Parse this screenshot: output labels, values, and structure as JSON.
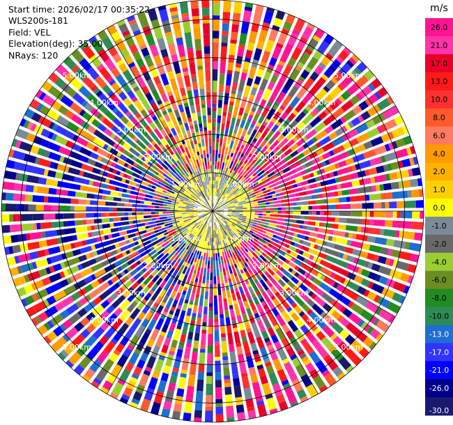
{
  "header": {
    "start_time": "Start time: 2026/02/17 00:35:22",
    "instrument": "WLS200s-181",
    "field": "Field: VEL",
    "elevation": "Elevation(deg): 35.00",
    "nrays": "NRays: 120"
  },
  "chart_data": {
    "type": "heatmap",
    "subtype": "ppi-polar",
    "field": "VEL",
    "unit": "m/s",
    "rays": 120,
    "elevation_deg": 35.0,
    "max_range_km": 5.5,
    "range_rings_km": [
      1.0,
      2.0,
      3.0,
      4.0,
      5.0
    ],
    "range_ring_labels": [
      "1.00km",
      "2.00km",
      "3.00km",
      "4.00km",
      "5.00km"
    ],
    "colorbar": {
      "unit_label": "m/s",
      "tick_labels": [
        "26.0",
        "21.0",
        "17.0",
        "13.0",
        "10.0",
        "8.0",
        "6.0",
        "4.0",
        "2.0",
        "1.0",
        "0.0",
        "-1.0",
        "-2.0",
        "-4.0",
        "-6.0",
        "-8.0",
        "-10.0",
        "-13.0",
        "-17.0",
        "-21.0",
        "-26.0",
        "-30.0"
      ],
      "colors": [
        "#ff1493",
        "#ff33aa",
        "#e8002a",
        "#ff1a1a",
        "#ff3030",
        "#ff5a2a",
        "#ff7a60",
        "#ff9a00",
        "#ffb000",
        "#ffd000",
        "#ffff00",
        "#7a8a96",
        "#696969",
        "#9acd32",
        "#6b8e23",
        "#228b22",
        "#2e8b57",
        "#1e6fd0",
        "#3333ff",
        "#0000ff",
        "#00008b",
        "#191970"
      ]
    },
    "sector_tendency": [
      {
        "azimuth_deg": 0,
        "dominant": "positive (red/orange)"
      },
      {
        "azimuth_deg": 45,
        "dominant": "positive (pink/magenta)"
      },
      {
        "azimuth_deg": 90,
        "dominant": "mixed"
      },
      {
        "azimuth_deg": 135,
        "dominant": "positive (pink/red)"
      },
      {
        "azimuth_deg": 270,
        "dominant": "negative (navy/blue)"
      },
      {
        "azimuth_deg": 315,
        "dominant": "negative (green/blue)"
      }
    ],
    "center_near_range": "yellow / grey-green (near zero)"
  }
}
